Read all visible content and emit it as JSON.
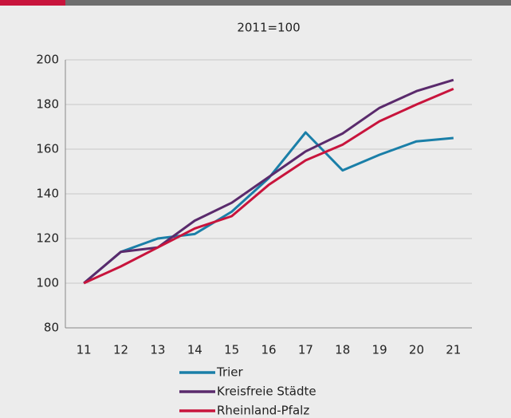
{
  "chart_data": {
    "type": "line",
    "title": "2011=100",
    "categories": [
      "11",
      "12",
      "13",
      "14",
      "15",
      "16",
      "17",
      "18",
      "19",
      "20",
      "21"
    ],
    "series": [
      {
        "name": "Trier",
        "color": "#1a7fa8",
        "values": [
          100,
          114,
          120,
          122,
          132,
          147,
          167.5,
          150.5,
          157.5,
          163.5,
          165
        ]
      },
      {
        "name": "Kreisfreie Städte",
        "color": "#5a2a6c",
        "values": [
          100,
          114,
          116,
          128,
          136,
          147.5,
          159,
          167,
          178.5,
          186,
          191
        ]
      },
      {
        "name": "Rheinland-Pfalz",
        "color": "#c8143c",
        "values": [
          100,
          107.5,
          116,
          124.5,
          130,
          144,
          155,
          162,
          172.5,
          180,
          187
        ]
      }
    ],
    "ylim": [
      80,
      200
    ],
    "yticks": [
      80,
      100,
      120,
      140,
      160,
      180,
      200
    ],
    "grid": true,
    "legend": "bottom"
  }
}
